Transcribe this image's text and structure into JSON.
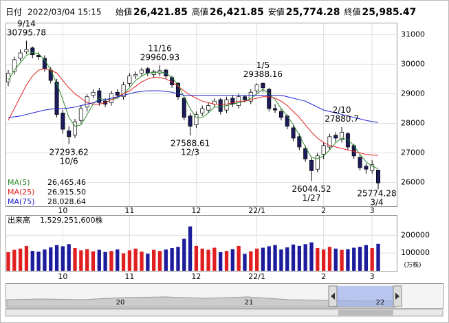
{
  "header": {
    "date_label": "日付",
    "date": "2022/03/04 15:15",
    "fields": [
      {
        "label": "始値",
        "value": "26,421.85",
        "color": "#000000"
      },
      {
        "label": "高値",
        "value": "26,421.85",
        "color": "#e00000"
      },
      {
        "label": "安値",
        "value": "25,774.28",
        "color": "#008000"
      },
      {
        "label": "終値",
        "value": "25,985.47",
        "color": "#000000"
      }
    ]
  },
  "chart_data": {
    "type": "candlestick",
    "categories": [
      null,
      null,
      null,
      null,
      null,
      null,
      null,
      null,
      null,
      "10",
      null,
      null,
      null,
      null,
      null,
      null,
      null,
      null,
      null,
      null,
      "11",
      null,
      null,
      null,
      null,
      null,
      null,
      null,
      null,
      null,
      null,
      "12",
      null,
      null,
      null,
      null,
      null,
      null,
      null,
      null,
      null,
      "22/1",
      null,
      null,
      null,
      null,
      null,
      null,
      null,
      null,
      null,
      null,
      "2",
      null,
      null,
      null,
      null,
      null,
      null,
      null,
      "3",
      null
    ],
    "open": [
      29400,
      29750,
      30200,
      30420,
      30550,
      30300,
      30200,
      29800,
      29400,
      28350,
      27750,
      27600,
      28100,
      28550,
      28950,
      29100,
      28750,
      28700,
      29050,
      28900,
      29350,
      29600,
      29700,
      29850,
      29650,
      29700,
      29800,
      29550,
      29350,
      28850,
      28250,
      27950,
      28350,
      28450,
      28650,
      28800,
      28450,
      28850,
      28600,
      28900,
      28750,
      29100,
      29350,
      29150,
      28500,
      28400,
      28250,
      27850,
      27550,
      27150,
      26750,
      26450,
      26950,
      27200,
      27600,
      27450,
      27650,
      27250,
      26850,
      26550,
      26400,
      26421.85
    ],
    "high": [
      29800,
      30250,
      30500,
      30795.78,
      30600,
      30400,
      30300,
      29900,
      29500,
      28450,
      27900,
      28150,
      28600,
      28980,
      29150,
      29200,
      28850,
      29100,
      29150,
      29400,
      29700,
      29750,
      29880,
      29900,
      29800,
      29960.93,
      29850,
      29600,
      29400,
      28900,
      28350,
      28400,
      28600,
      28700,
      28850,
      28850,
      28900,
      28950,
      29000,
      28950,
      29150,
      29350,
      29388.16,
      29200,
      28650,
      28500,
      28300,
      27950,
      27650,
      27250,
      26850,
      27000,
      27350,
      27650,
      27700,
      27880.7,
      27700,
      27300,
      26950,
      26650,
      26750,
      26421.85
    ],
    "low": [
      29250,
      29650,
      30100,
      30350,
      30200,
      30150,
      29750,
      29350,
      28200,
      27650,
      27293.62,
      27500,
      28000,
      28400,
      28850,
      28600,
      28550,
      28600,
      28850,
      28800,
      29250,
      29500,
      29600,
      29600,
      29550,
      29600,
      29500,
      29200,
      28800,
      28100,
      27588.61,
      27850,
      28250,
      28350,
      28550,
      28300,
      28350,
      28550,
      28500,
      28700,
      28650,
      29000,
      29050,
      28400,
      28350,
      28100,
      27800,
      27400,
      27100,
      26700,
      26044.52,
      26350,
      26800,
      27100,
      27350,
      27350,
      27100,
      26800,
      26400,
      26300,
      26300,
      25774.28
    ],
    "close": [
      29700,
      30150,
      30380,
      30500,
      30320,
      30250,
      29850,
      29450,
      28300,
      27800,
      27550,
      28050,
      28500,
      28900,
      29050,
      28700,
      28650,
      29000,
      28950,
      29300,
      29600,
      29650,
      29800,
      29700,
      29750,
      29780,
      29600,
      29300,
      28900,
      28200,
      27900,
      28300,
      28500,
      28600,
      28750,
      28400,
      28800,
      28650,
      28900,
      28800,
      29050,
      29300,
      29200,
      28500,
      28450,
      28200,
      27900,
      27500,
      27200,
      26800,
      26400,
      26900,
      27250,
      27550,
      27500,
      27700,
      27200,
      26900,
      26500,
      26450,
      26600,
      25985.47
    ],
    "up_color": "#ffffff",
    "down_color": "#1c1c5c",
    "candle_edge": "#000000",
    "ylim": [
      25200,
      31380
    ],
    "yticks": [
      26000,
      27000,
      28000,
      29000,
      30000,
      31000
    ],
    "grid": true,
    "series": [
      {
        "name": "MA(5)",
        "color": "#2a8a2a",
        "legend_value": "26,465.46",
        "values": [
          29450,
          29800,
          30050,
          30300,
          30400,
          30350,
          30150,
          29800,
          29350,
          28800,
          28200,
          27900,
          27950,
          28300,
          28650,
          28850,
          28800,
          28800,
          28850,
          29000,
          29200,
          29450,
          29600,
          29700,
          29720,
          29740,
          29700,
          29550,
          29300,
          28900,
          28500,
          28200,
          28200,
          28350,
          28550,
          28550,
          28600,
          28650,
          28700,
          28750,
          28850,
          29000,
          29150,
          29000,
          28800,
          28500,
          28250,
          27950,
          27600,
          27200,
          26850,
          26800,
          26900,
          27100,
          27350,
          27500,
          27450,
          27250,
          26950,
          26700,
          26550,
          26465.46
        ]
      },
      {
        "name": "MA(25)",
        "color": "#e02020",
        "legend_value": "26,915.50",
        "values": [
          28100,
          28500,
          28900,
          29300,
          29600,
          29800,
          29850,
          29800,
          29700,
          29450,
          29200,
          29000,
          28850,
          28700,
          28650,
          28650,
          28700,
          28800,
          28900,
          29000,
          29100,
          29250,
          29400,
          29500,
          29550,
          29550,
          29500,
          29400,
          29250,
          29100,
          28950,
          28850,
          28750,
          28700,
          28650,
          28650,
          28650,
          28700,
          28750,
          28750,
          28800,
          28850,
          28900,
          28900,
          28850,
          28750,
          28600,
          28400,
          28200,
          27950,
          27700,
          27500,
          27350,
          27250,
          27200,
          27150,
          27100,
          27050,
          27000,
          26950,
          26930,
          26915.5
        ]
      },
      {
        "name": "MA(75)",
        "color": "#2020d0",
        "legend_value": "28,028.64",
        "values": [
          28200,
          28220,
          28250,
          28300,
          28350,
          28400,
          28450,
          28480,
          28500,
          28500,
          28520,
          28550,
          28600,
          28650,
          28700,
          28750,
          28800,
          28850,
          28900,
          28950,
          29000,
          29050,
          29080,
          29100,
          29100,
          29100,
          29080,
          29050,
          29000,
          28950,
          28950,
          28950,
          28950,
          28950,
          28950,
          28950,
          28950,
          28950,
          28950,
          28950,
          28950,
          28950,
          28950,
          28950,
          28950,
          28950,
          28900,
          28850,
          28800,
          28750,
          28650,
          28550,
          28450,
          28400,
          28350,
          28300,
          28250,
          28200,
          28150,
          28100,
          28060,
          28028.64
        ]
      }
    ],
    "annotations": [
      {
        "date": "9/14",
        "value": 30795.78
      },
      {
        "date": "10/6",
        "value": 27293.62
      },
      {
        "date": "11/16",
        "value": 29960.93
      },
      {
        "date": "12/3",
        "value": 27588.61
      },
      {
        "date": "1/5",
        "value": 29388.16
      },
      {
        "date": "1/27",
        "value": 26044.52
      },
      {
        "date": "2/10",
        "value": 27880.7
      },
      {
        "date": "3/4",
        "value": 25774.28
      }
    ],
    "volume": {
      "title": "出来高",
      "total": "1,529,251,600株",
      "unit": "(万株)",
      "up_color": "#e02020",
      "down_color": "#1c1c9c",
      "ylim": [
        0,
        310000
      ],
      "yticks": [
        100000,
        200000
      ],
      "values": [
        105000,
        118000,
        125000,
        140000,
        112000,
        108000,
        120000,
        132000,
        145000,
        138000,
        150000,
        128000,
        115000,
        122000,
        110000,
        118000,
        106000,
        112000,
        120000,
        98000,
        115000,
        125000,
        108000,
        96000,
        118000,
        112000,
        120000,
        128000,
        135000,
        180000,
        250000,
        140000,
        125000,
        118000,
        130000,
        105000,
        112000,
        122000,
        140000,
        95000,
        110000,
        125000,
        130000,
        138000,
        145000,
        120000,
        132000,
        148000,
        140000,
        150000,
        160000,
        128000,
        120000,
        135000,
        125000,
        118000,
        122000,
        130000,
        135000,
        145000,
        128000,
        152000
      ]
    }
  },
  "navigator": {
    "labels": [
      "20",
      "21",
      "22"
    ]
  }
}
